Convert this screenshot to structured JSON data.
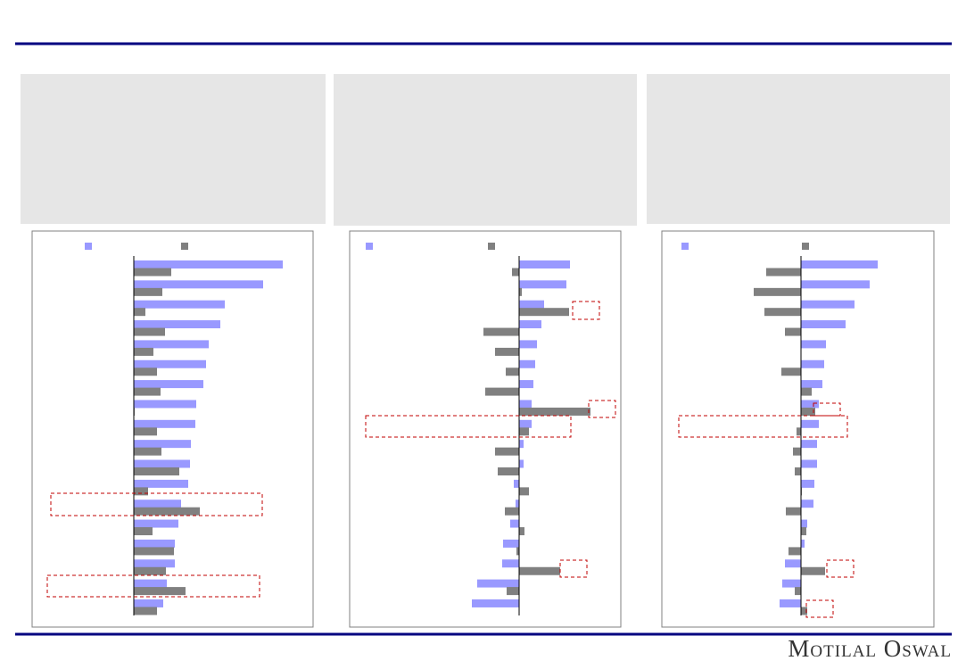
{
  "chart_data": [
    {
      "type": "bar",
      "orientation": "horizontal",
      "series": [
        {
          "color": "#9999ff",
          "values": [
            167,
            145,
            102,
            97,
            84,
            81,
            78,
            70,
            69,
            64,
            63,
            61,
            53,
            50,
            46,
            46,
            37,
            33
          ]
        },
        {
          "color": "#808080",
          "values": [
            42,
            32,
            13,
            35,
            22,
            26,
            30,
            1,
            26,
            31,
            51,
            16,
            74,
            21,
            45,
            36,
            58,
            26
          ]
        }
      ]
    },
    {
      "type": "bar",
      "orientation": "horizontal",
      "series": [
        {
          "color": "#9999ff",
          "values": [
            57,
            53,
            28,
            25,
            20,
            18,
            16,
            14,
            14,
            5,
            5,
            -6,
            -4,
            -10,
            -18,
            -19,
            -47,
            -53
          ]
        },
        {
          "color": "#808080",
          "values": [
            -8,
            3,
            56,
            -40,
            -27,
            -15,
            -38,
            80,
            11,
            -27,
            -24,
            11,
            -16,
            6,
            -3,
            46,
            -14,
            0
          ]
        }
      ]
    },
    {
      "type": "bar",
      "orientation": "horizontal",
      "series": [
        {
          "color": "#9999ff",
          "values": [
            86,
            77,
            60,
            50,
            28,
            26,
            24,
            20,
            20,
            18,
            18,
            15,
            14,
            7,
            4,
            -18,
            -21,
            -24
          ]
        },
        {
          "color": "#808080",
          "values": [
            -39,
            -53,
            -41,
            -18,
            0,
            -22,
            12,
            16,
            -5,
            -9,
            -7,
            1,
            -17,
            6,
            -14,
            27,
            -7,
            7
          ]
        }
      ]
    }
  ],
  "brand": "Motilal Oswal"
}
